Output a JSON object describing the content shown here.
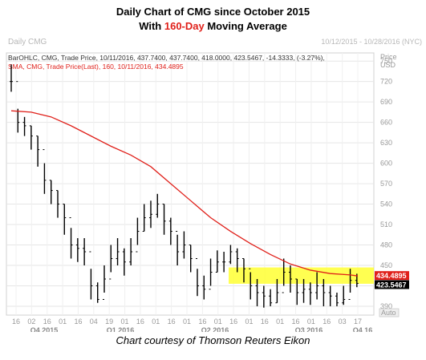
{
  "title_line1": "Daily Chart of CMG since October 2015",
  "title_line2_prefix": "With ",
  "title_line2_highlight": "160-Day",
  "title_line2_suffix": " Moving Average",
  "caption": "Chart courtesy of Thomson Reuters Eikon",
  "chart_header": {
    "name": "Daily CMG",
    "date_range": "10/12/2015 - 10/28/2016 (NYC)",
    "price_label": "Price",
    "currency": "USD",
    "auto_label": "Auto",
    "bar_info": "BarOHLC, CMG, Trade Price, 10/11/2016, 437.7400, 437.7400, 418.0000, 423.5467, -14.3333, (-3.27%),",
    "sma_info": "SMA, CMG, Trade Price(Last), 160, 10/11/2016, 434.4895",
    "sma_value_tag": "434.4895",
    "last_price_tag": "423.5467"
  },
  "colors": {
    "sma": "#e0201a",
    "bars": "#000000",
    "highlight_band": "#ffff33",
    "grid": "#e6e6e6"
  },
  "chart_data": {
    "type": "line",
    "title": "Daily Chart of CMG since October 2015",
    "ylabel": "Price USD",
    "ylim": [
      377,
      762
    ],
    "yticks": [
      390,
      420,
      450,
      480,
      510,
      540,
      570,
      600,
      630,
      660,
      690,
      720,
      750
    ],
    "grid": true,
    "x_day_labels": [
      "16",
      "02",
      "16",
      "01",
      "16",
      "04",
      "19",
      "01",
      "16",
      "01",
      "16",
      "01",
      "16",
      "01",
      "16",
      "01",
      "16",
      "01",
      "16",
      "01",
      "16",
      "03",
      "17"
    ],
    "x_quarter_labels": [
      "Q4 2015",
      "Q1 2016",
      "Q2 2016",
      "Q3 2016",
      "Q4 16"
    ],
    "highlight_band": [
      423,
      447
    ],
    "series": [
      {
        "name": "BarOHLC, CMG, Trade Price",
        "kind": "ohlc",
        "x": [
          "2015-10-12",
          "2015-10-19",
          "2015-10-26",
          "2015-11-02",
          "2015-11-09",
          "2015-11-16",
          "2015-11-23",
          "2015-11-30",
          "2015-12-07",
          "2015-12-14",
          "2015-12-21",
          "2015-12-28",
          "2016-01-04",
          "2016-01-11",
          "2016-01-18",
          "2016-01-25",
          "2016-02-01",
          "2016-02-08",
          "2016-02-15",
          "2016-02-22",
          "2016-02-29",
          "2016-03-07",
          "2016-03-14",
          "2016-03-21",
          "2016-03-28",
          "2016-04-04",
          "2016-04-11",
          "2016-04-18",
          "2016-04-25",
          "2016-05-02",
          "2016-05-09",
          "2016-05-16",
          "2016-05-23",
          "2016-05-30",
          "2016-06-06",
          "2016-06-13",
          "2016-06-20",
          "2016-06-27",
          "2016-07-04",
          "2016-07-11",
          "2016-07-18",
          "2016-07-25",
          "2016-08-01",
          "2016-08-08",
          "2016-08-15",
          "2016-08-22",
          "2016-08-29",
          "2016-09-05",
          "2016-09-12",
          "2016-09-19",
          "2016-09-26",
          "2016-10-03",
          "2016-10-10"
        ],
        "close": [
          720,
          660,
          655,
          640,
          620,
          575,
          560,
          540,
          520,
          480,
          475,
          470,
          420,
          400,
          430,
          460,
          470,
          455,
          470,
          500,
          520,
          525,
          540,
          515,
          500,
          470,
          480,
          460,
          420,
          415,
          440,
          455,
          455,
          470,
          460,
          445,
          420,
          410,
          405,
          395,
          410,
          440,
          430,
          410,
          415,
          410,
          420,
          410,
          405,
          395,
          400,
          428,
          423.5467
        ],
        "high": [
          745,
          680,
          668,
          655,
          640,
          600,
          575,
          560,
          540,
          505,
          490,
          490,
          445,
          425,
          450,
          480,
          490,
          475,
          490,
          520,
          540,
          545,
          555,
          540,
          520,
          495,
          500,
          480,
          445,
          435,
          460,
          472,
          470,
          480,
          475,
          460,
          440,
          430,
          420,
          415,
          430,
          460,
          450,
          430,
          430,
          425,
          440,
          430,
          420,
          410,
          420,
          445,
          437.74
        ],
        "low": [
          705,
          645,
          640,
          620,
          595,
          555,
          540,
          520,
          495,
          460,
          455,
          450,
          400,
          395,
          410,
          440,
          450,
          435,
          450,
          480,
          500,
          505,
          520,
          495,
          480,
          450,
          460,
          440,
          405,
          400,
          420,
          440,
          440,
          452,
          440,
          425,
          400,
          390,
          388,
          390,
          395,
          420,
          410,
          392,
          395,
          392,
          400,
          390,
          390,
          390,
          392,
          410,
          418
        ]
      },
      {
        "name": "SMA, CMG, Trade Price(Last), 160",
        "kind": "line",
        "x": [
          "2015-10-12",
          "2015-11-02",
          "2015-11-23",
          "2015-12-14",
          "2016-01-04",
          "2016-01-25",
          "2016-02-15",
          "2016-03-07",
          "2016-03-28",
          "2016-04-18",
          "2016-05-09",
          "2016-05-30",
          "2016-06-20",
          "2016-07-11",
          "2016-08-01",
          "2016-08-22",
          "2016-09-12",
          "2016-10-03",
          "2016-10-11"
        ],
        "y": [
          677,
          675,
          668,
          655,
          640,
          625,
          612,
          595,
          570,
          545,
          520,
          500,
          482,
          466,
          452,
          443,
          438,
          436,
          434.4895
        ]
      }
    ]
  }
}
